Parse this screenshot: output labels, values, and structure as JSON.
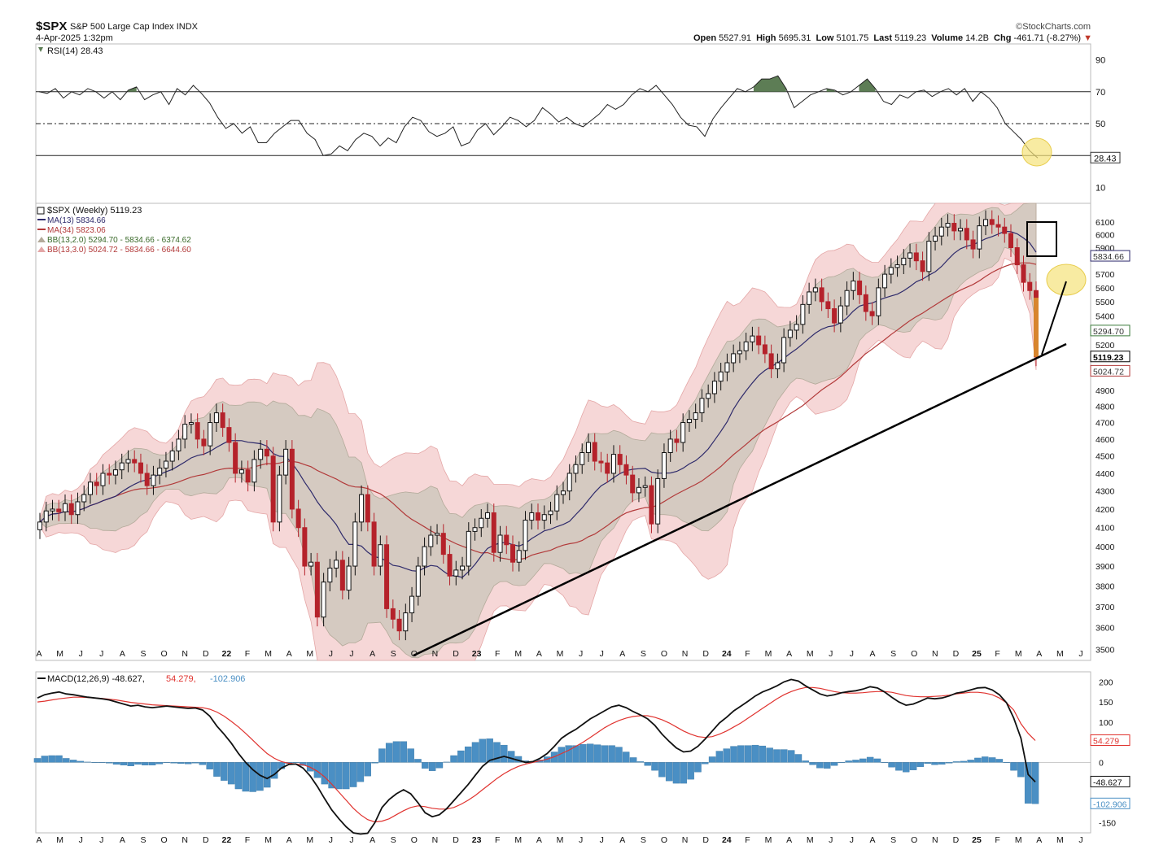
{
  "header": {
    "symbol": "$SPX",
    "name": "S&P 500 Large Cap Index",
    "exchange": "INDX",
    "date": "4-Apr-2025 1:32pm",
    "source": "©StockCharts.com",
    "open_label": "Open",
    "open": "5527.91",
    "high_label": "High",
    "high": "5695.31",
    "low_label": "Low",
    "low": "5101.75",
    "last_label": "Last",
    "last": "5119.23",
    "volume_label": "Volume",
    "volume": "14.2B",
    "chg_label": "Chg",
    "chg": "-461.71 (-8.27%)",
    "chg_arrow": "▼"
  },
  "colors": {
    "up": "#111111",
    "down": "#b5222b",
    "ma13": "#2e2a6b",
    "ma34": "#b23a3a",
    "bb2_fill": "#cfc8bd",
    "bb3_fill": "#f6d7d7",
    "rsi_fill": "#5d7d55",
    "macd_line": "#111111",
    "signal_line": "#e0332f",
    "hist": "#4a8fc4",
    "annot_yellow": "#f5e27a"
  },
  "chart_data": [
    {
      "type": "line",
      "panel": "rsi",
      "legend": "RSI(14) 28.43",
      "ylim": [
        0,
        100
      ],
      "ticks": [
        "90",
        "70",
        "50",
        "10"
      ],
      "levels": [
        70,
        50,
        30
      ],
      "last_value": "28.43",
      "series": [
        {
          "values": [
            70,
            69,
            72,
            66,
            70,
            68,
            72,
            70,
            66,
            70,
            65,
            71,
            73,
            65,
            68,
            70,
            62,
            72,
            68,
            74,
            69,
            63,
            54,
            47,
            50,
            44,
            48,
            38,
            38,
            44,
            48,
            52,
            52,
            44,
            40,
            30,
            31,
            36,
            33,
            40,
            44,
            42,
            36,
            41,
            38,
            48,
            54,
            52,
            45,
            42,
            44,
            48,
            36,
            38,
            46,
            50,
            43,
            48,
            54,
            52,
            48,
            52,
            60,
            56,
            51,
            54,
            50,
            48,
            52,
            56,
            62,
            59,
            62,
            68,
            72,
            70,
            74,
            68,
            62,
            54,
            49,
            48,
            42,
            53,
            60,
            66,
            72,
            70,
            73,
            78,
            78,
            80,
            72,
            60,
            64,
            68,
            70,
            72,
            71,
            68,
            70,
            74,
            78,
            72,
            64,
            62,
            68,
            66,
            70,
            71,
            67,
            70,
            72,
            68,
            72,
            64,
            70,
            66,
            60,
            50,
            45,
            40,
            33,
            28.43
          ]
        }
      ]
    },
    {
      "type": "candlestick",
      "panel": "price",
      "legend": "$SPX (Weekly) 5119.23",
      "ma13_label": "MA(13) 5834.66",
      "ma34_label": "MA(34) 5823.06",
      "bb2_label": "BB(13,2.0) 5294.70 - 5834.66 - 6374.62",
      "bb3_label": "BB(13,3.0) 5024.72 - 5834.66 - 6644.60",
      "scale": "log",
      "ylim": [
        3450,
        6250
      ],
      "ticks": [
        "6100",
        "6000",
        "5900",
        "5700",
        "5600",
        "5500",
        "5400",
        "5300",
        "5200",
        "4900",
        "4800",
        "4700",
        "4600",
        "4500",
        "4400",
        "4300",
        "4200",
        "4100",
        "4000",
        "3900",
        "3800",
        "3700",
        "3600",
        "3500"
      ],
      "value_labels": [
        {
          "text": "5834.66",
          "value": 5834.66
        },
        {
          "text": "5294.70",
          "value": 5294.7
        },
        {
          "text": "5119.23",
          "value": 5119.23
        },
        {
          "text": "5024.72",
          "value": 5024.72
        }
      ],
      "closes": [
        4130,
        4190,
        4200,
        4185,
        4230,
        4170,
        4240,
        4280,
        4350,
        4330,
        4400,
        4390,
        4420,
        4460,
        4480,
        4460,
        4400,
        4330,
        4390,
        4430,
        4470,
        4530,
        4600,
        4690,
        4700,
        4600,
        4560,
        4700,
        4760,
        4670,
        4580,
        4400,
        4420,
        4350,
        4480,
        4540,
        4500,
        4130,
        4390,
        4540,
        4200,
        4100,
        3900,
        3920,
        3650,
        3820,
        3890,
        3930,
        3780,
        3900,
        4130,
        4280,
        4130,
        3900,
        4010,
        3690,
        3640,
        3585,
        3670,
        3750,
        3900,
        4000,
        4060,
        4070,
        3960,
        3850,
        3880,
        3900,
        4080,
        4100,
        4150,
        4180,
        3970,
        4060,
        4010,
        3920,
        3980,
        4140,
        4180,
        4140,
        4170,
        4190,
        4280,
        4300,
        4400,
        4450,
        4520,
        4580,
        4470,
        4460,
        4400,
        4510,
        4450,
        4390,
        4290,
        4320,
        4330,
        4120,
        4370,
        4520,
        4600,
        4580,
        4700,
        4720,
        4760,
        4850,
        4880,
        4960,
        5020,
        5080,
        5140,
        5160,
        5220,
        5260,
        5200,
        5140,
        5040,
        5080,
        5250,
        5300,
        5340,
        5480,
        5570,
        5600,
        5500,
        5450,
        5350,
        5470,
        5580,
        5650,
        5550,
        5430,
        5400,
        5600,
        5700,
        5750,
        5770,
        5820,
        5860,
        5800,
        5720,
        5950,
        5990,
        6060,
        6090,
        6030,
        6050,
        5960,
        5890,
        6070,
        6120,
        6080,
        6060,
        6010,
        5900,
        5770,
        5640,
        5580,
        5119.23
      ],
      "annotations": [
        "trendline from Oct 2022 low to Apr 2025",
        "box at MA13/MA34 crossover near 5900-6000",
        "yellow target circle near 5600-5700",
        "arrow from current price toward target"
      ]
    },
    {
      "type": "line",
      "panel": "macd",
      "legend_macd": "MACD(12,26,9) -48.627,",
      "legend_signal": "54.279,",
      "legend_hist": "-102.906",
      "ylim": [
        -175,
        225
      ],
      "ticks": [
        "200",
        "150",
        "100",
        "0",
        "-150"
      ],
      "value_labels": [
        {
          "text": "54.279",
          "value": 54.279
        },
        {
          "text": "-48.627",
          "value": -48.627
        },
        {
          "text": "-102.906",
          "value": -102.906
        }
      ],
      "series": [
        {
          "values": [
            160,
            168,
            172,
            175,
            170,
            168,
            165,
            162,
            160,
            158,
            155,
            150,
            145,
            140,
            142,
            138,
            136,
            138,
            140,
            138,
            136,
            134,
            135,
            130,
            115,
            90,
            70,
            48,
            22,
            0,
            -18,
            -32,
            -40,
            -30,
            -14,
            -5,
            -4,
            -14,
            -34,
            -60,
            -90,
            -118,
            -140,
            -160,
            -175,
            -178,
            -176,
            -150,
            -112,
            -92,
            -78,
            -68,
            -78,
            -100,
            -125,
            -135,
            -130,
            -115,
            -95,
            -75,
            -55,
            -32,
            -10,
            5,
            10,
            15,
            10,
            5,
            0,
            2,
            10,
            22,
            40,
            60,
            72,
            82,
            95,
            108,
            118,
            128,
            138,
            142,
            136,
            126,
            118,
            108,
            92,
            70,
            52,
            36,
            26,
            28,
            40,
            58,
            78,
            98,
            112,
            128,
            140,
            152,
            165,
            175,
            182,
            190,
            200,
            206,
            202,
            190,
            180,
            170,
            165,
            168,
            173,
            176,
            178,
            182,
            188,
            185,
            175,
            162,
            150,
            142,
            145,
            152,
            160,
            158,
            160,
            165,
            172,
            175,
            180,
            185,
            186,
            180,
            168,
            148,
            110,
            60,
            -30,
            -48.627
          ]
        },
        {
          "values": [
            150,
            152,
            155,
            158,
            160,
            162,
            162,
            161,
            160,
            159,
            157,
            155,
            152,
            149,
            147,
            145,
            143,
            142,
            141,
            140,
            139,
            138,
            137,
            136,
            132,
            125,
            115,
            102,
            88,
            72,
            55,
            38,
            22,
            10,
            2,
            -2,
            -4,
            -6,
            -12,
            -22,
            -36,
            -54,
            -74,
            -94,
            -114,
            -130,
            -142,
            -148,
            -146,
            -140,
            -130,
            -120,
            -112,
            -108,
            -110,
            -114,
            -116,
            -116,
            -112,
            -104,
            -94,
            -82,
            -68,
            -54,
            -40,
            -28,
            -18,
            -10,
            -4,
            0,
            4,
            8,
            14,
            22,
            30,
            40,
            50,
            62,
            74,
            86,
            96,
            104,
            110,
            114,
            116,
            116,
            112,
            106,
            98,
            88,
            78,
            70,
            64,
            62,
            64,
            70,
            78,
            88,
            98,
            110,
            122,
            134,
            146,
            158,
            168,
            176,
            182,
            186,
            186,
            184,
            180,
            176,
            173,
            172,
            172,
            173,
            175,
            176,
            176,
            174,
            170,
            166,
            164,
            163,
            163,
            164,
            165,
            167,
            170,
            172,
            174,
            174,
            172,
            168,
            160,
            148,
            130,
            96,
            72,
            54.279
          ]
        }
      ],
      "histogram_last": -102.906
    }
  ],
  "x_axis": {
    "months_top": [
      "A",
      "M",
      "J",
      "J",
      "A",
      "S",
      "O",
      "N",
      "D",
      "22",
      "F",
      "M",
      "A",
      "M",
      "J",
      "J",
      "A",
      "S",
      "O",
      "N",
      "D",
      "23",
      "F",
      "M",
      "A",
      "M",
      "J",
      "J",
      "A",
      "S",
      "O",
      "N",
      "D",
      "24",
      "F",
      "M",
      "A",
      "M",
      "J",
      "J",
      "A",
      "S",
      "O",
      "N",
      "D",
      "25",
      "F",
      "M",
      "A",
      "M",
      "J"
    ],
    "months_bottom": [
      "A",
      "M",
      "J",
      "J",
      "A",
      "S",
      "O",
      "N",
      "D",
      "22",
      "F",
      "M",
      "A",
      "M",
      "J",
      "J",
      "A",
      "S",
      "O",
      "N",
      "D",
      "23",
      "F",
      "M",
      "A",
      "M",
      "J",
      "J",
      "A",
      "S",
      "O",
      "N",
      "D",
      "24",
      "F",
      "M",
      "A",
      "M",
      "J",
      "J",
      "A",
      "S",
      "O",
      "N",
      "D",
      "25",
      "F",
      "M",
      "A",
      "M",
      "J"
    ]
  }
}
